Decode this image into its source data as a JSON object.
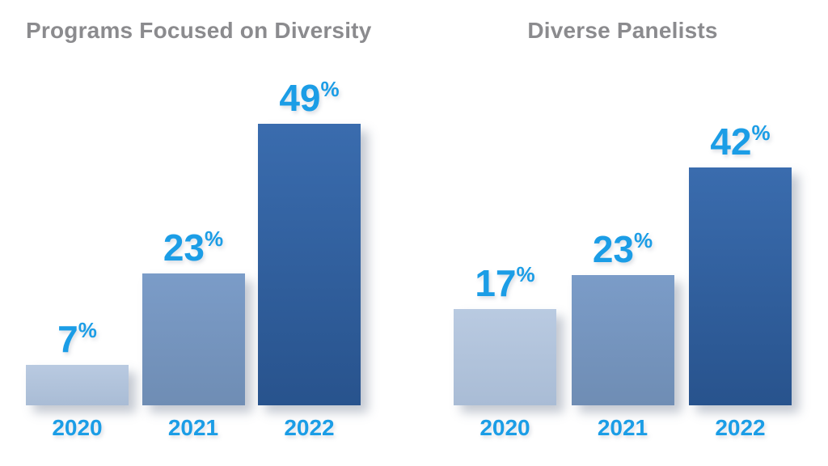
{
  "page": {
    "background": "#ffffff"
  },
  "colors": {
    "title_gray": "#8b8b8e",
    "label_blue": "#1b9de6",
    "bar_gradients": [
      [
        "#b9cae1",
        "#a9bcd5"
      ],
      [
        "#7b9cc8",
        "#6f8db4"
      ],
      [
        "#3a6cae",
        "#28538d"
      ]
    ],
    "shadow": "rgba(125,135,155,0.45)"
  },
  "chart_data": [
    {
      "type": "bar",
      "title": "Programs Focused on Diversity",
      "categories": [
        "2020",
        "2021",
        "2022"
      ],
      "values": [
        7,
        23,
        49
      ],
      "value_suffix": "%",
      "xlabel": "",
      "ylabel": "",
      "ylim": [
        0,
        52
      ],
      "grid": false,
      "legend": null,
      "value_labels": [
        "7%",
        "23%",
        "49%"
      ]
    },
    {
      "type": "bar",
      "title": "Diverse Panelists",
      "categories": [
        "2020",
        "2021",
        "2022"
      ],
      "values": [
        17,
        23,
        42
      ],
      "value_suffix": "%",
      "xlabel": "",
      "ylabel": "",
      "ylim": [
        0,
        52
      ],
      "grid": false,
      "legend": null,
      "value_labels": [
        "17%",
        "23%",
        "42%"
      ]
    }
  ]
}
